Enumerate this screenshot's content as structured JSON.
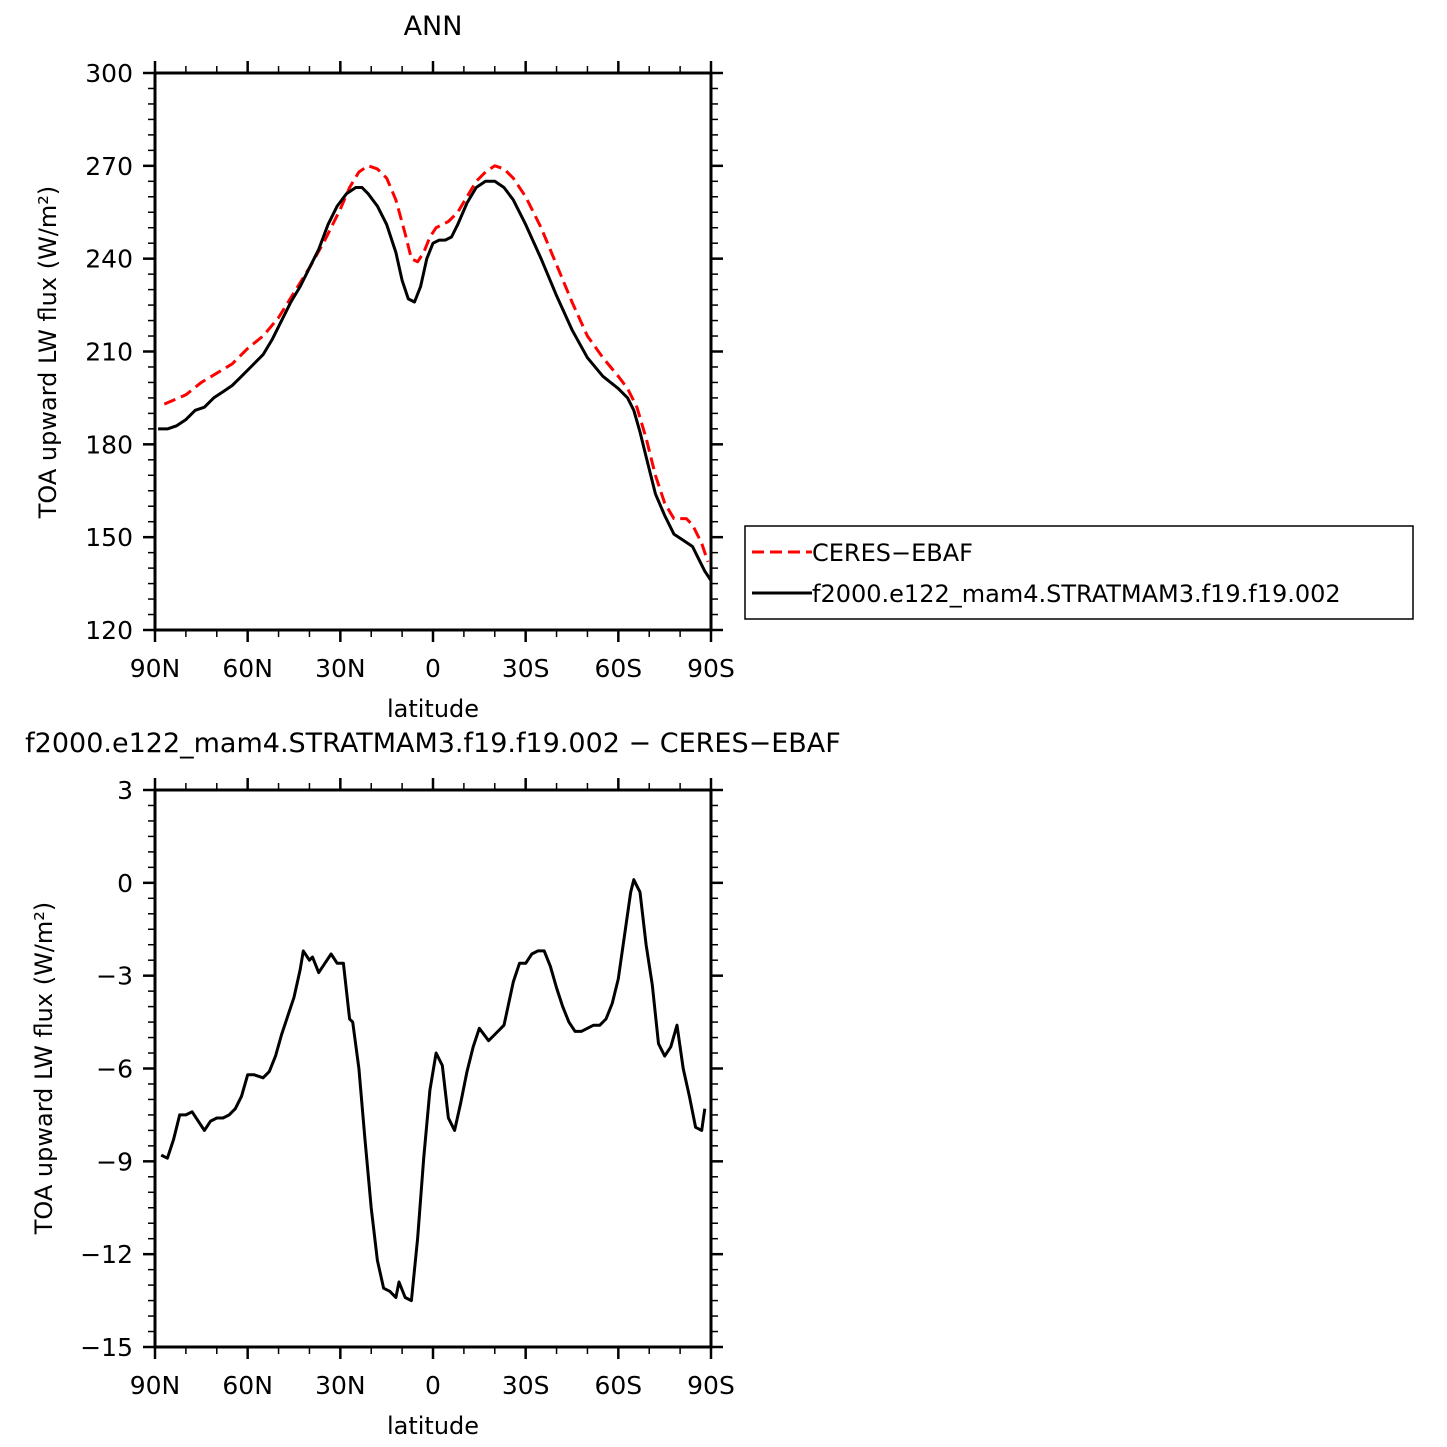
{
  "chart_data": [
    {
      "type": "line",
      "title": "ANN",
      "xlabel": "latitude",
      "ylabel": "TOA upward LW flux (W/m²)",
      "xlim": [
        -90,
        90
      ],
      "ylim": [
        120,
        300
      ],
      "x_ticks": [
        -90,
        -60,
        -30,
        0,
        30,
        60,
        90
      ],
      "x_tick_labels": [
        "90N",
        "60N",
        "30N",
        "0",
        "30S",
        "60S",
        "90S"
      ],
      "y_ticks": [
        120,
        150,
        180,
        210,
        240,
        270,
        300
      ],
      "y_tick_labels": [
        "120",
        "150",
        "180",
        "210",
        "240",
        "270",
        "300"
      ],
      "grid": false,
      "legend_position": "right-outside",
      "series": [
        {
          "name": "CERES−EBAF",
          "color": "#ff0000",
          "dash": "dashed",
          "x": [
            -87,
            -80,
            -75,
            -70,
            -65,
            -60,
            -55,
            -50,
            -45,
            -40,
            -35,
            -30,
            -27,
            -24,
            -21,
            -18,
            -15,
            -12,
            -9,
            -7,
            -5,
            -3,
            -1,
            1,
            3,
            5,
            8,
            11,
            14,
            17,
            20,
            23,
            26,
            30,
            35,
            40,
            45,
            50,
            55,
            60,
            63,
            66,
            69,
            72,
            75,
            78,
            82,
            84,
            87,
            89
          ],
          "values": [
            193,
            196,
            200,
            203,
            206,
            211,
            215,
            221,
            229,
            237,
            246,
            256,
            263,
            268,
            270,
            269,
            266,
            259,
            248,
            240,
            239,
            242,
            247,
            250,
            251,
            252,
            255,
            260,
            265,
            268,
            270,
            269,
            266,
            260,
            250,
            238,
            226,
            215,
            208,
            202,
            198,
            192,
            182,
            170,
            161,
            156,
            156,
            154,
            148,
            142
          ]
        },
        {
          "name": "f2000.e122_mam4.STRATMAM3.f19.f19.002",
          "color": "#000000",
          "dash": "solid",
          "x": [
            -89,
            -86,
            -83,
            -80,
            -77,
            -74,
            -71,
            -68,
            -65,
            -62,
            -59,
            -55,
            -52,
            -49,
            -46,
            -43,
            -40,
            -37,
            -34,
            -31,
            -28,
            -25,
            -23,
            -21,
            -18,
            -15,
            -12,
            -10,
            -8,
            -6,
            -4,
            -2,
            0,
            2,
            4,
            6,
            8,
            11,
            14,
            17,
            20,
            23,
            26,
            30,
            35,
            40,
            45,
            50,
            55,
            60,
            63,
            65,
            67,
            69,
            72,
            75,
            78,
            81,
            84,
            86,
            88,
            90
          ],
          "values": [
            185,
            185,
            186,
            188,
            191,
            192,
            195,
            197,
            199,
            202,
            205,
            209,
            214,
            220,
            226,
            231,
            237,
            243,
            251,
            257,
            261,
            263,
            263,
            261,
            257,
            251,
            242,
            233,
            227,
            226,
            231,
            240,
            245,
            246,
            246,
            247,
            251,
            258,
            263,
            265,
            265,
            263,
            259,
            251,
            240,
            228,
            217,
            208,
            202,
            198,
            195,
            191,
            184,
            176,
            164,
            157,
            151,
            149,
            147,
            143,
            139,
            136
          ]
        }
      ]
    },
    {
      "type": "line",
      "title": "f2000.e122_mam4.STRATMAM3.f19.f19.002 − CERES−EBAF",
      "xlabel": "latitude",
      "ylabel": "TOA upward LW flux (W/m²)",
      "xlim": [
        -90,
        90
      ],
      "ylim": [
        -15,
        3
      ],
      "x_ticks": [
        -90,
        -60,
        -30,
        0,
        30,
        60,
        90
      ],
      "x_tick_labels": [
        "90N",
        "60N",
        "30N",
        "0",
        "30S",
        "60S",
        "90S"
      ],
      "y_ticks": [
        -15,
        -12,
        -9,
        -6,
        -3,
        0,
        3
      ],
      "y_tick_labels": [
        "−15",
        "−12",
        "−9",
        "−6",
        "−3",
        "0",
        "3"
      ],
      "grid": false,
      "series": [
        {
          "name": "",
          "color": "#000000",
          "dash": "solid",
          "x": [
            -88,
            -86,
            -84,
            -82,
            -80,
            -78,
            -76,
            -74,
            -72,
            -70,
            -68,
            -66,
            -64,
            -62,
            -60,
            -58,
            -55,
            -53,
            -51,
            -49,
            -47,
            -45,
            -43,
            -42,
            -40,
            -39,
            -37,
            -35,
            -33,
            -31,
            -29,
            -27,
            -26,
            -24,
            -22,
            -20,
            -18,
            -16,
            -14,
            -12,
            -11,
            -9,
            -7,
            -5,
            -3,
            -1,
            1,
            3,
            5,
            7,
            9,
            11,
            13,
            15,
            18,
            20,
            23,
            26,
            28,
            30,
            32,
            34,
            36,
            38,
            40,
            42,
            44,
            46,
            48,
            50,
            52,
            54,
            56,
            58,
            60,
            62,
            64,
            65,
            66,
            67,
            69,
            71,
            73,
            75,
            77,
            79,
            81,
            83,
            85,
            87,
            88
          ],
          "values": [
            -8.8,
            -8.9,
            -8.3,
            -7.5,
            -7.5,
            -7.4,
            -7.7,
            -8.0,
            -7.7,
            -7.6,
            -7.6,
            -7.5,
            -7.3,
            -6.9,
            -6.2,
            -6.2,
            -6.3,
            -6.1,
            -5.6,
            -4.9,
            -4.3,
            -3.7,
            -2.8,
            -2.2,
            -2.5,
            -2.4,
            -2.9,
            -2.6,
            -2.3,
            -2.6,
            -2.6,
            -4.4,
            -4.5,
            -6.0,
            -8.3,
            -10.5,
            -12.2,
            -13.1,
            -13.2,
            -13.4,
            -12.9,
            -13.4,
            -13.5,
            -11.5,
            -8.9,
            -6.7,
            -5.5,
            -5.9,
            -7.6,
            -8.0,
            -7.1,
            -6.1,
            -5.3,
            -4.7,
            -5.1,
            -4.9,
            -4.6,
            -3.2,
            -2.6,
            -2.6,
            -2.3,
            -2.2,
            -2.2,
            -2.7,
            -3.4,
            -4.0,
            -4.5,
            -4.8,
            -4.8,
            -4.7,
            -4.6,
            -4.6,
            -4.4,
            -3.9,
            -3.1,
            -1.7,
            -0.3,
            0.1,
            -0.1,
            -0.3,
            -2.0,
            -3.3,
            -5.2,
            -5.6,
            -5.3,
            -4.6,
            -6.0,
            -6.9,
            -7.9,
            -8.0,
            -7.3
          ]
        }
      ]
    }
  ]
}
